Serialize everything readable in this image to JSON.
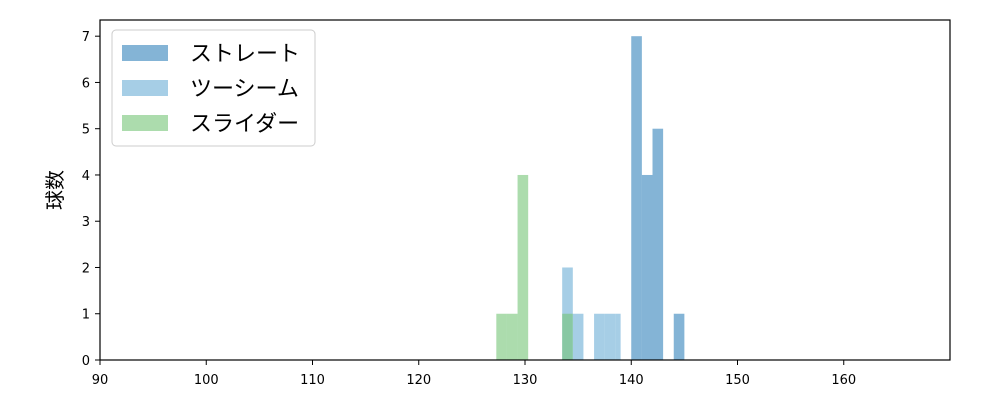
{
  "chart_data": {
    "type": "bar",
    "title": "",
    "xlabel": "",
    "ylabel": "球数",
    "xlim": [
      90,
      170
    ],
    "ylim": [
      0,
      7.35
    ],
    "xticks": [
      90,
      100,
      110,
      120,
      130,
      140,
      150,
      160
    ],
    "yticks": [
      0,
      1,
      2,
      3,
      4,
      5,
      6,
      7
    ],
    "grid": false,
    "legend_position": "top-left",
    "series": [
      {
        "name": "ストレート",
        "color": "#1f77b4",
        "opacity": 0.55,
        "bins": [
          {
            "x0": 140.0,
            "x1": 141.0,
            "count": 7
          },
          {
            "x0": 141.0,
            "x1": 142.0,
            "count": 4
          },
          {
            "x0": 142.0,
            "x1": 143.0,
            "count": 5
          },
          {
            "x0": 144.0,
            "x1": 145.0,
            "count": 1
          }
        ]
      },
      {
        "name": "ツーシーム",
        "color": "#6baed6",
        "opacity": 0.6,
        "bins": [
          {
            "x0": 133.5,
            "x1": 134.5,
            "count": 2
          },
          {
            "x0": 134.5,
            "x1": 135.5,
            "count": 1
          },
          {
            "x0": 136.5,
            "x1": 137.5,
            "count": 1
          },
          {
            "x0": 137.5,
            "x1": 138.5,
            "count": 1
          },
          {
            "x0": 138.5,
            "x1": 139.0,
            "count": 1
          }
        ]
      },
      {
        "name": "スライダー",
        "color": "#74c476",
        "opacity": 0.6,
        "bins": [
          {
            "x0": 127.3,
            "x1": 128.3,
            "count": 1
          },
          {
            "x0": 128.3,
            "x1": 129.3,
            "count": 1
          },
          {
            "x0": 129.3,
            "x1": 130.3,
            "count": 4
          },
          {
            "x0": 133.5,
            "x1": 134.5,
            "count": 1
          }
        ]
      }
    ]
  }
}
